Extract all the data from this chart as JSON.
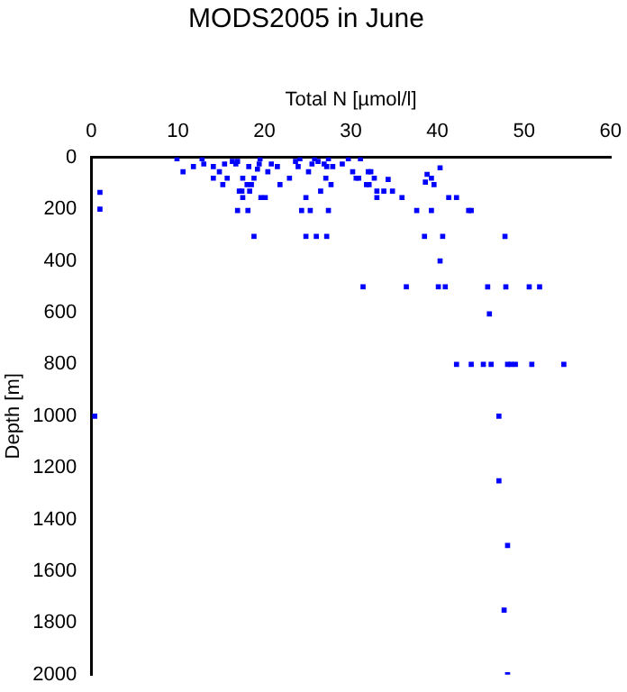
{
  "chart_data": {
    "type": "scatter",
    "title": "MODS2005 in June",
    "xlabel": "Total N [µmol/l]",
    "ylabel": "Depth [m]",
    "xlim": [
      0,
      60
    ],
    "xticks": [
      0,
      10,
      20,
      30,
      40,
      50,
      60
    ],
    "ylim": [
      2000,
      0
    ],
    "yticks": [
      0,
      200,
      400,
      600,
      800,
      1000,
      1200,
      1400,
      1600,
      1800,
      2000
    ],
    "grid": false,
    "legend": false,
    "marker": "square",
    "series": [
      {
        "color": "#0000ff",
        "x": [
          1.0,
          1.0,
          9.9,
          10.6,
          11.8,
          12.8,
          13.0,
          14.1,
          14.1,
          14.8,
          15.2,
          15.4,
          15.7,
          16.3,
          16.7,
          16.9,
          17.1,
          17.4,
          17.5,
          17.5,
          16.9,
          18.1,
          18.2,
          18.0,
          18.3,
          18.5,
          18.8,
          18.8,
          19.2,
          19.4,
          19.5,
          19.6,
          20.1,
          20.4,
          20.8,
          21.5,
          21.8,
          22.9,
          23.6,
          23.9,
          24.1,
          24.3,
          24.8,
          24.8,
          25.1,
          25.3,
          25.5,
          25.8,
          26.0,
          26.2,
          26.5,
          26.9,
          27.1,
          27.2,
          27.4,
          27.2,
          27.4,
          27.7,
          27.9,
          29.0,
          29.7,
          30.2,
          30.6,
          31.1,
          30.9,
          32.0,
          32.3,
          31.8,
          32.1,
          32.7,
          33.0,
          33.0,
          33.8,
          34.3,
          34.8,
          35.9,
          37.6,
          38.5,
          38.8,
          38.6,
          39.3,
          39.6,
          39.3,
          40.3,
          40.6,
          40.3,
          41.3,
          42.2,
          43.6,
          43.9,
          47.8,
          31.4,
          36.4,
          40.1,
          40.9,
          45.8,
          47.9,
          50.6,
          51.8,
          46.0,
          42.2,
          43.9,
          45.3,
          46.2,
          48.1,
          48.5,
          49.0,
          50.9,
          54.6,
          0.4,
          47.1,
          47.1,
          48.1,
          47.7,
          48.1
        ],
        "values": [
          135,
          200,
          5,
          55,
          35,
          5,
          25,
          35,
          80,
          55,
          105,
          25,
          80,
          15,
          25,
          15,
          130,
          130,
          155,
          80,
          205,
          205,
          35,
          105,
          130,
          105,
          80,
          305,
          45,
          25,
          5,
          155,
          155,
          55,
          25,
          35,
          105,
          80,
          15,
          35,
          5,
          205,
          155,
          305,
          55,
          205,
          25,
          5,
          305,
          15,
          130,
          25,
          80,
          35,
          205,
          305,
          5,
          105,
          35,
          25,
          5,
          55,
          80,
          5,
          80,
          55,
          55,
          105,
          105,
          80,
          130,
          155,
          130,
          85,
          130,
          155,
          205,
          305,
          65,
          95,
          80,
          105,
          205,
          40,
          305,
          400,
          155,
          155,
          205,
          205,
          305,
          500,
          500,
          500,
          500,
          500,
          500,
          500,
          500,
          605,
          800,
          800,
          800,
          800,
          800,
          800,
          800,
          800,
          800,
          1000,
          1000,
          1250,
          1500,
          1750,
          2000
        ]
      }
    ]
  }
}
